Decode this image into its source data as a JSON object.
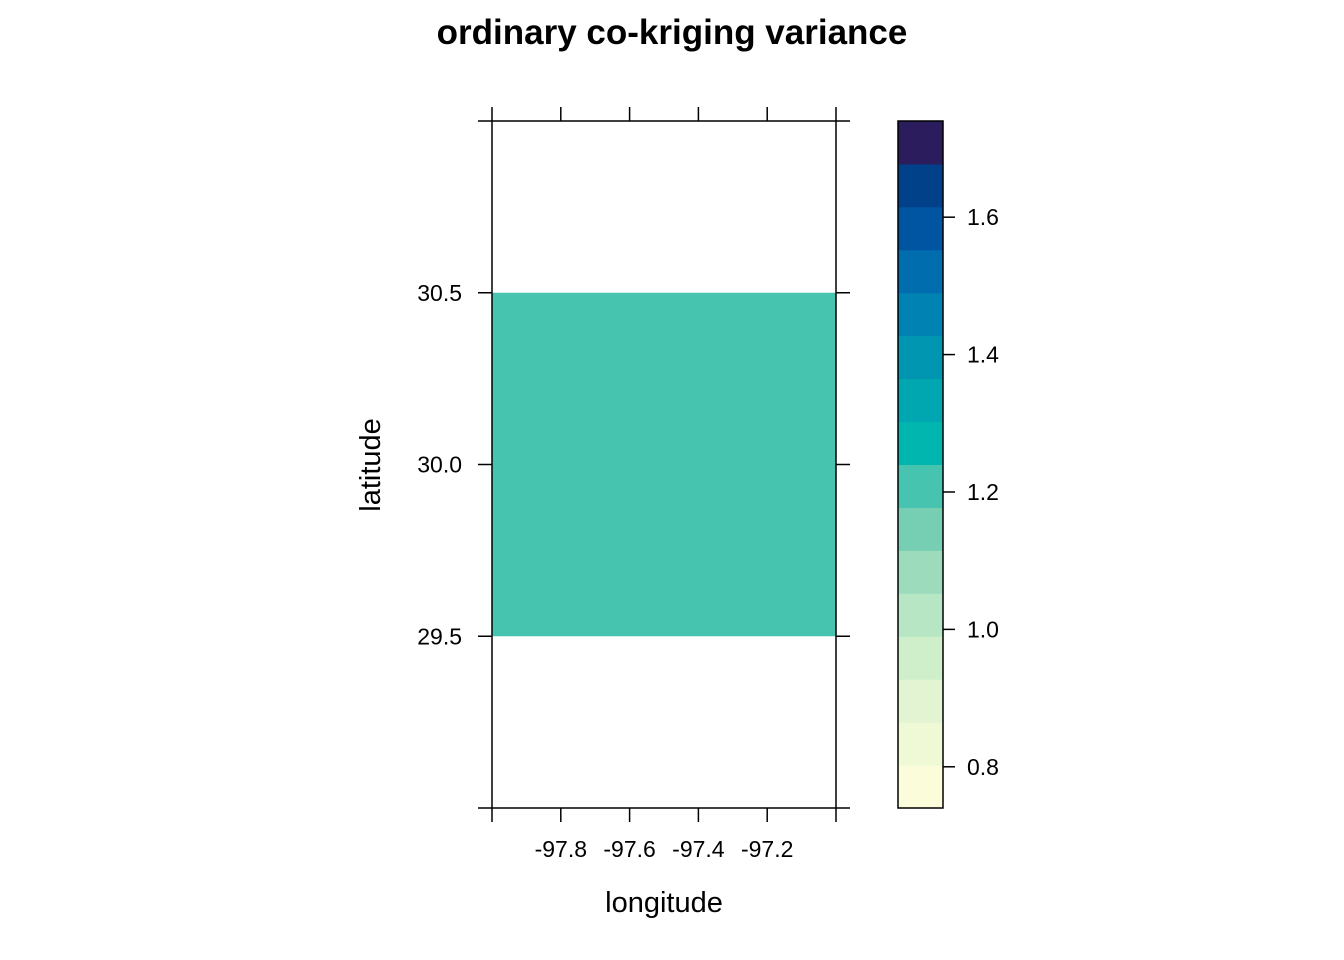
{
  "chart_data": {
    "type": "heatmap",
    "title": "ordinary co-kriging variance",
    "xlabel": "longitude",
    "ylabel": "latitude",
    "xlim": [
      -98.0,
      -97.0
    ],
    "ylim": [
      29.0,
      31.0
    ],
    "x_ticks": [
      -97.8,
      -97.6,
      -97.4,
      -97.2
    ],
    "x_tick_labels": [
      "-97.8",
      "-97.6",
      "-97.4",
      "-97.2"
    ],
    "y_ticks": [
      29.5,
      30.0,
      30.5
    ],
    "y_tick_labels": [
      "29.5",
      "30.0",
      "30.5"
    ],
    "grid": false,
    "cells": [
      {
        "x_range": [
          -98.0,
          -97.0
        ],
        "y_range": [
          29.5,
          30.5
        ],
        "value": 1.2,
        "color": "#47C4B0"
      }
    ],
    "colorkey": {
      "position": "right",
      "range": [
        0.74,
        1.74
      ],
      "breaks": [
        0.74,
        0.8025,
        0.865,
        0.9275,
        0.99,
        1.0525,
        1.115,
        1.1775,
        1.24,
        1.3025,
        1.365,
        1.4275,
        1.49,
        1.5525,
        1.615,
        1.6775,
        1.74
      ],
      "colors": [
        "#FBFDDA",
        "#EFF9D5",
        "#E2F4D1",
        "#CEEFCA",
        "#B6E6C3",
        "#9CDBBC",
        "#76CFB3",
        "#47C4B0",
        "#00B6AE",
        "#00A7B0",
        "#0096B2",
        "#0083B3",
        "#006DAF",
        "#0055A2",
        "#00418A",
        "#2B1D5D"
      ],
      "ticks": [
        0.8,
        1.0,
        1.2,
        1.4,
        1.6
      ],
      "tick_labels": [
        "0.8",
        "1.0",
        "1.2",
        "1.4",
        "1.6"
      ]
    }
  }
}
